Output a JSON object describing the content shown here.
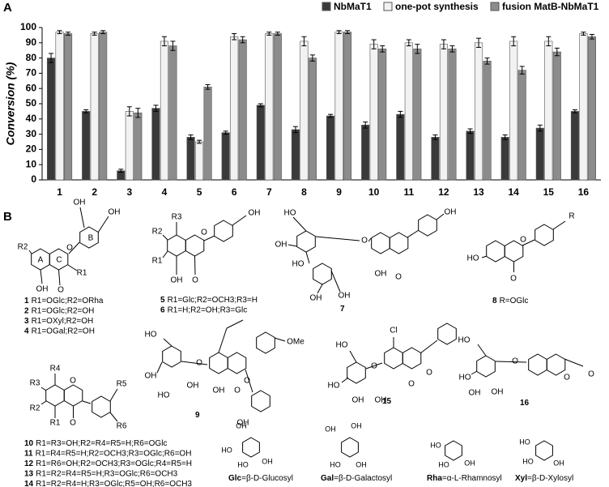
{
  "chart_data": {
    "type": "bar",
    "panel_label": "A",
    "y_label": "Conversion (%)",
    "categories": [
      "1",
      "2",
      "3",
      "4",
      "5",
      "6",
      "7",
      "8",
      "9",
      "10",
      "11",
      "12",
      "13",
      "14",
      "15",
      "16"
    ],
    "series": [
      {
        "name": "NbMaT1",
        "color": "#3a3a3a",
        "values": [
          80,
          45,
          6,
          47,
          28,
          31,
          49,
          33,
          42,
          36,
          43,
          28,
          32,
          28,
          34,
          45
        ],
        "errors": [
          3,
          1,
          1,
          2,
          1.5,
          1,
          1,
          2,
          1,
          2,
          2,
          1.5,
          1.5,
          1.5,
          2,
          1
        ]
      },
      {
        "name": "one-pot synthesis",
        "color": "#f2f2f2",
        "values": [
          97,
          96,
          45,
          91,
          25,
          94,
          96,
          91,
          97,
          89,
          90,
          89,
          90,
          91,
          91,
          96
        ],
        "errors": [
          1,
          1,
          3,
          3,
          1,
          2,
          1,
          3,
          1,
          3,
          2,
          3,
          3,
          3,
          3,
          1
        ]
      },
      {
        "name": "fusion MatB-NbMaT1",
        "color": "#8c8c8c",
        "values": [
          96,
          97,
          44,
          88,
          61,
          92,
          96,
          80,
          97,
          86,
          86,
          86,
          78,
          72,
          84,
          94
        ],
        "errors": [
          1,
          1,
          3,
          3,
          1.5,
          2,
          1,
          2,
          1,
          2,
          3,
          2,
          2,
          2.5,
          2.5,
          1.5
        ]
      }
    ],
    "ylim": [
      0,
      100
    ],
    "yticks": [
      0,
      10,
      20,
      30,
      40,
      50,
      60,
      70,
      80,
      90,
      100
    ],
    "legend": "top-right"
  },
  "panel_b": {
    "panel_label": "B",
    "structures": [
      {
        "atoms": [
          "OH",
          "OH",
          "R2",
          "A",
          "C",
          "B",
          "O",
          "R1",
          "OH",
          "O"
        ],
        "compounds": [
          {
            "id": "1",
            "text": "R1=OGlc;R2=ORha"
          },
          {
            "id": "2",
            "text": "R1=OGlc;R2=OH"
          },
          {
            "id": "3",
            "text": "R1=OXyl;R2=OH"
          },
          {
            "id": "4",
            "text": "R1=OGal;R2=OH"
          }
        ]
      },
      {
        "atoms": [
          "R3",
          "R2",
          "R1",
          "OH",
          "O",
          "OH",
          "O"
        ],
        "compounds": [
          {
            "id": "5",
            "text": "R1=Glc;R2=OCH3;R3=H"
          },
          {
            "id": "6",
            "text": "R1=H;R2=OH;R3=Glc"
          }
        ]
      },
      {
        "atoms": [
          "HO",
          "OH",
          "HO",
          "OH",
          "OH",
          "OH",
          "O",
          "OH",
          "O"
        ],
        "compounds": [
          {
            "id": "7",
            "text": ""
          }
        ]
      },
      {
        "atoms": [
          "HO",
          "O",
          "O",
          "R"
        ],
        "compounds": [
          {
            "id": "8",
            "text": "R=OGlc"
          }
        ]
      },
      {
        "atoms": [
          "OMe",
          "HO",
          "OH",
          "HO",
          "OH",
          "OH",
          "O",
          "OH",
          "O",
          "O"
        ],
        "compounds": [
          {
            "id": "9",
            "text": ""
          }
        ]
      },
      {
        "atoms": [
          "Cl",
          "HO",
          "HO",
          "OH",
          "OH",
          "O",
          "O",
          "O"
        ],
        "compounds": [
          {
            "id": "15",
            "text": ""
          }
        ]
      },
      {
        "atoms": [
          "HO",
          "HO",
          "OH",
          "OH",
          "O",
          "O",
          "O"
        ],
        "compounds": [
          {
            "id": "16",
            "text": ""
          }
        ]
      },
      {
        "atoms": [
          "R4",
          "R3",
          "R2",
          "R1",
          "O",
          "O",
          "R5",
          "R6"
        ],
        "compounds": [
          {
            "id": "10",
            "text": "R1=R3=OH;R2=R4=R5=H;R6=OGlc"
          },
          {
            "id": "11",
            "text": "R1=R4=R5=H;R2=OCH3;R3=OGlc;R6=OH"
          },
          {
            "id": "12",
            "text": "R1=R6=OH;R2=OCH3;R3=OGlc;R4=R5=H"
          },
          {
            "id": "13",
            "text": "R1=R2=R4=R5=H;R3=OGlc;R6=OCH3"
          },
          {
            "id": "14",
            "text": "R1=R2=R4=H;R3=OGlc;R5=OH;R6=OCH3"
          }
        ]
      }
    ],
    "sugars": [
      {
        "atoms": [
          "OH",
          "HO",
          "HO",
          "OH"
        ],
        "abbr": "Glc",
        "name": "=β-D-Glucosyl"
      },
      {
        "atoms": [
          "OH",
          "OH",
          "HO",
          "OH"
        ],
        "abbr": "Gal",
        "name": "=β-D-Galactosyl"
      },
      {
        "atoms": [
          "HO",
          "HO",
          "OH"
        ],
        "abbr": "Rha",
        "name": "=α-L-Rhamnosyl"
      },
      {
        "atoms": [
          "HO",
          "HO",
          "OH"
        ],
        "abbr": "Xyl",
        "name": "=β-D-Xylosyl"
      }
    ]
  }
}
